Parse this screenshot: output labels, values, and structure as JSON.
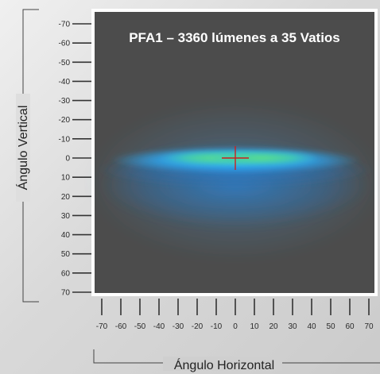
{
  "chart_data": {
    "type": "heatmap",
    "title": "PFA1 – 3360 lúmenes a 35 Vatios",
    "xlabel": "Ángulo Horizontal",
    "ylabel": "Ángulo Vertical",
    "xlim": [
      -70,
      70
    ],
    "ylim": [
      -70,
      70
    ],
    "x_ticks": [
      "-70",
      "-60",
      "-50",
      "-40",
      "-30",
      "-20",
      "-10",
      "0",
      "10",
      "20",
      "30",
      "40",
      "50",
      "60",
      "70"
    ],
    "y_ticks": [
      "-70",
      "-60",
      "-50",
      "-40",
      "-30",
      "-20",
      "-10",
      "0",
      "10",
      "20",
      "30",
      "40",
      "50",
      "60",
      "70"
    ],
    "beam_center": {
      "x": 0,
      "y": 0
    },
    "colors": {
      "background": "#4c4c4c",
      "hot": "#52d68a",
      "mid": "#2fa9f0",
      "low": "#2a6fb0",
      "crosshair": "#cc1f1f",
      "frame": "#ffffff"
    }
  }
}
